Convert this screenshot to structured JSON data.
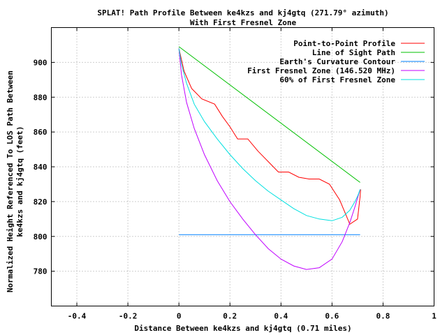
{
  "chart_data": {
    "type": "line",
    "title": "SPLAT! Path Profile Between ke4kzs and kj4gtq (271.79° azimuth)",
    "subtitle": "With First Fresnel Zone",
    "xlabel": "Distance Between ke4kzs and kj4gtq (0.71 miles)",
    "ylabel_line1": "Normalized Height Referenced To LOS Path Between",
    "ylabel_line2": "ke4kzs and kj4gtq (feet)",
    "xlim": [
      -0.5,
      1.0
    ],
    "ylim": [
      760,
      920
    ],
    "x_ticks": [
      -0.4,
      -0.2,
      0,
      0.2,
      0.4,
      0.6,
      0.8,
      1
    ],
    "x_tick_labels": [
      "-0.4",
      "-0.2",
      "0",
      "0.2",
      "0.4",
      "0.6",
      "0.8",
      "1"
    ],
    "y_ticks": [
      780,
      800,
      820,
      840,
      860,
      880,
      900
    ],
    "y_tick_labels": [
      "780",
      "800",
      "820",
      "840",
      "860",
      "880",
      "900"
    ],
    "grid": true,
    "legend_position": "top-right",
    "series": [
      {
        "name": "Point-to-Point Profile",
        "color": "#ff0000",
        "x": [
          0,
          0.02,
          0.05,
          0.09,
          0.14,
          0.17,
          0.2,
          0.23,
          0.27,
          0.31,
          0.35,
          0.37,
          0.39,
          0.43,
          0.47,
          0.51,
          0.55,
          0.59,
          0.63,
          0.67,
          0.7,
          0.71,
          0.712
        ],
        "y": [
          908,
          895,
          885,
          879,
          876,
          869,
          863,
          856,
          856,
          849,
          843,
          840,
          837,
          837,
          834,
          833,
          833,
          830,
          821,
          807,
          810,
          823,
          827
        ]
      },
      {
        "name": "Line of Sight Path",
        "color": "#00c000",
        "x": [
          0,
          0.71
        ],
        "y": [
          909,
          831
        ]
      },
      {
        "name": "Earth's Curvature Contour",
        "color": "#0080ff",
        "x": [
          0,
          0.71
        ],
        "y": [
          801,
          801
        ]
      },
      {
        "name": "First Fresnel Zone (146.520 MHz)",
        "color": "#c000ff",
        "x": [
          0,
          0.01,
          0.03,
          0.06,
          0.1,
          0.15,
          0.2,
          0.25,
          0.3,
          0.35,
          0.4,
          0.45,
          0.5,
          0.55,
          0.6,
          0.64,
          0.67,
          0.69,
          0.7,
          0.71
        ],
        "y": [
          908,
          893,
          877,
          862,
          847,
          832,
          820,
          810,
          801,
          793,
          787,
          783,
          781,
          782,
          787,
          797,
          808,
          817,
          822,
          827
        ]
      },
      {
        "name": "60% of First Fresnel Zone",
        "color": "#00e0e0",
        "x": [
          0,
          0.01,
          0.03,
          0.06,
          0.1,
          0.15,
          0.2,
          0.25,
          0.3,
          0.35,
          0.4,
          0.45,
          0.5,
          0.55,
          0.6,
          0.64,
          0.67,
          0.69,
          0.7,
          0.71
        ],
        "y": [
          908,
          899,
          888,
          876,
          866,
          856,
          847,
          839,
          832,
          826,
          821,
          816,
          812,
          810,
          809,
          811,
          815,
          820,
          823,
          827
        ]
      }
    ]
  }
}
